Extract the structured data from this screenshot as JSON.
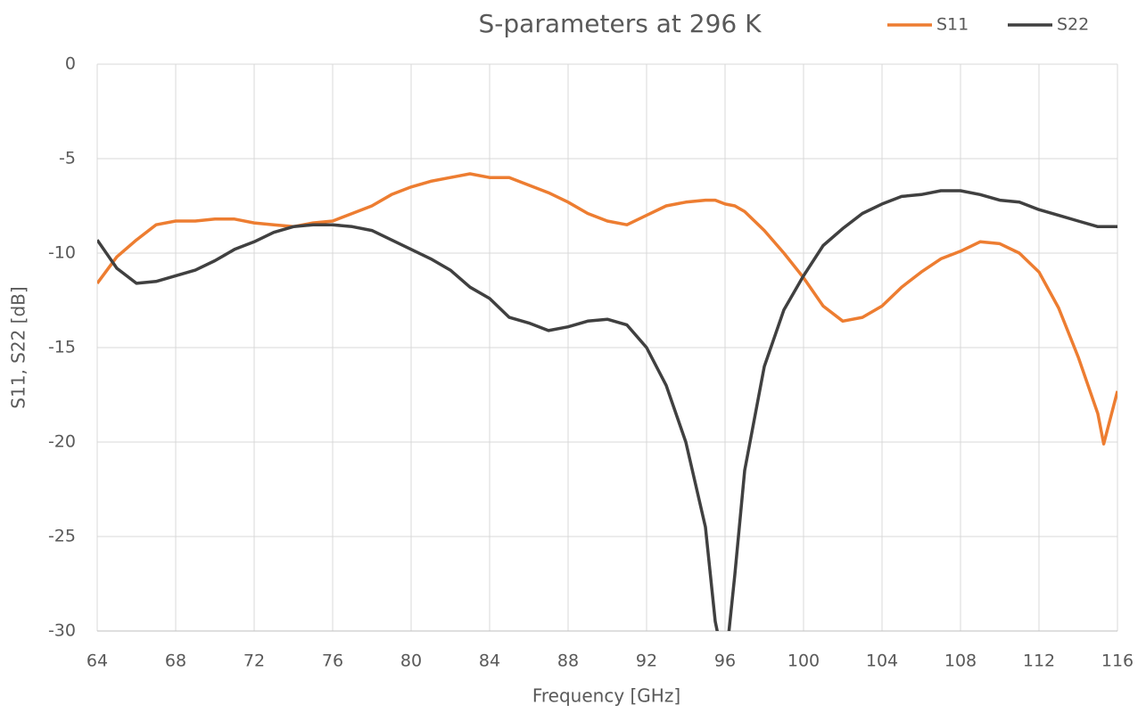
{
  "chart_data": {
    "type": "line",
    "title": "S-parameters at 296 K",
    "x_label": "Frequency [GHz]",
    "y_label": "S11, S22 [dB]",
    "x": [
      64,
      65,
      66,
      67,
      68,
      69,
      70,
      71,
      72,
      73,
      74,
      75,
      76,
      77,
      78,
      79,
      80,
      81,
      82,
      83,
      84,
      85,
      86,
      87,
      88,
      89,
      90,
      91,
      92,
      93,
      94,
      95,
      95.5,
      96,
      96.5,
      97,
      98,
      99,
      100,
      101,
      102,
      103,
      104,
      105,
      106,
      107,
      108,
      109,
      110,
      111,
      112,
      113,
      114,
      115,
      115.3,
      116
    ],
    "series": [
      {
        "name": "S11",
        "color": "#ed7d31",
        "values": [
          -11.6,
          -10.2,
          -9.3,
          -8.5,
          -8.3,
          -8.3,
          -8.2,
          -8.2,
          -8.4,
          -8.5,
          -8.6,
          -8.4,
          -8.3,
          -7.9,
          -7.5,
          -6.9,
          -6.5,
          -6.2,
          -6.0,
          -5.8,
          -6.0,
          -6.0,
          -6.4,
          -6.8,
          -7.3,
          -7.9,
          -8.3,
          -8.5,
          -8.0,
          -7.5,
          -7.3,
          -7.2,
          -7.2,
          -7.4,
          -7.5,
          -7.8,
          -8.8,
          -10.0,
          -11.3,
          -12.8,
          -13.6,
          -13.4,
          -12.8,
          -11.8,
          -11.0,
          -10.3,
          -9.9,
          -9.4,
          -9.5,
          -10.0,
          -11.0,
          -12.9,
          -15.5,
          -18.5,
          -20.1,
          -17.3
        ]
      },
      {
        "name": "S22",
        "color": "#404040",
        "values": [
          -9.3,
          -10.8,
          -11.6,
          -11.5,
          -11.2,
          -10.9,
          -10.4,
          -9.8,
          -9.4,
          -8.9,
          -8.6,
          -8.5,
          -8.5,
          -8.6,
          -8.8,
          -9.3,
          -9.8,
          -10.3,
          -10.9,
          -11.8,
          -12.4,
          -13.4,
          -13.7,
          -14.1,
          -13.9,
          -13.6,
          -13.5,
          -13.8,
          -15.0,
          -17.0,
          -20.0,
          -24.5,
          -29.5,
          -32,
          -27,
          -21.5,
          -16.0,
          -13.0,
          -11.2,
          -9.6,
          -8.7,
          -7.9,
          -7.4,
          -7.0,
          -6.9,
          -6.7,
          -6.7,
          -6.9,
          -7.2,
          -7.3,
          -7.7,
          -8.0,
          -8.3,
          -8.6,
          -8.6,
          -8.6
        ]
      }
    ],
    "xlim": [
      64,
      116
    ],
    "xticks": [
      64,
      68,
      72,
      76,
      80,
      84,
      88,
      92,
      96,
      100,
      104,
      108,
      112,
      116
    ],
    "ylim": [
      -30,
      0
    ],
    "yticks": [
      0,
      -5,
      -10,
      -15,
      -20,
      -25,
      -30
    ],
    "grid": true,
    "legend": "top-right"
  }
}
